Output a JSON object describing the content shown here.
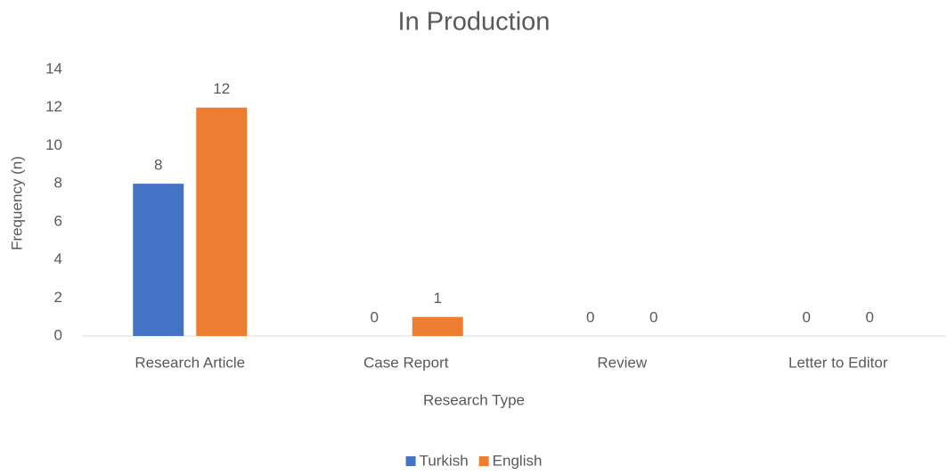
{
  "chart_data": {
    "type": "bar",
    "title": "In Production",
    "x_label": "Research Type",
    "y_label": "Frequency (n)",
    "categories": [
      "Research Article",
      "Case Report",
      "Review",
      "Letter to Editor"
    ],
    "series": [
      {
        "name": "Turkish",
        "color": "#4472c4",
        "values": [
          8,
          0,
          0,
          0
        ]
      },
      {
        "name": "English",
        "color": "#ed7d31",
        "values": [
          12,
          1,
          0,
          0
        ]
      }
    ],
    "ylim": [
      0,
      14
    ],
    "yticks": [
      0,
      2,
      4,
      6,
      8,
      10,
      12,
      14
    ],
    "grid": false,
    "legend": "bottom"
  }
}
